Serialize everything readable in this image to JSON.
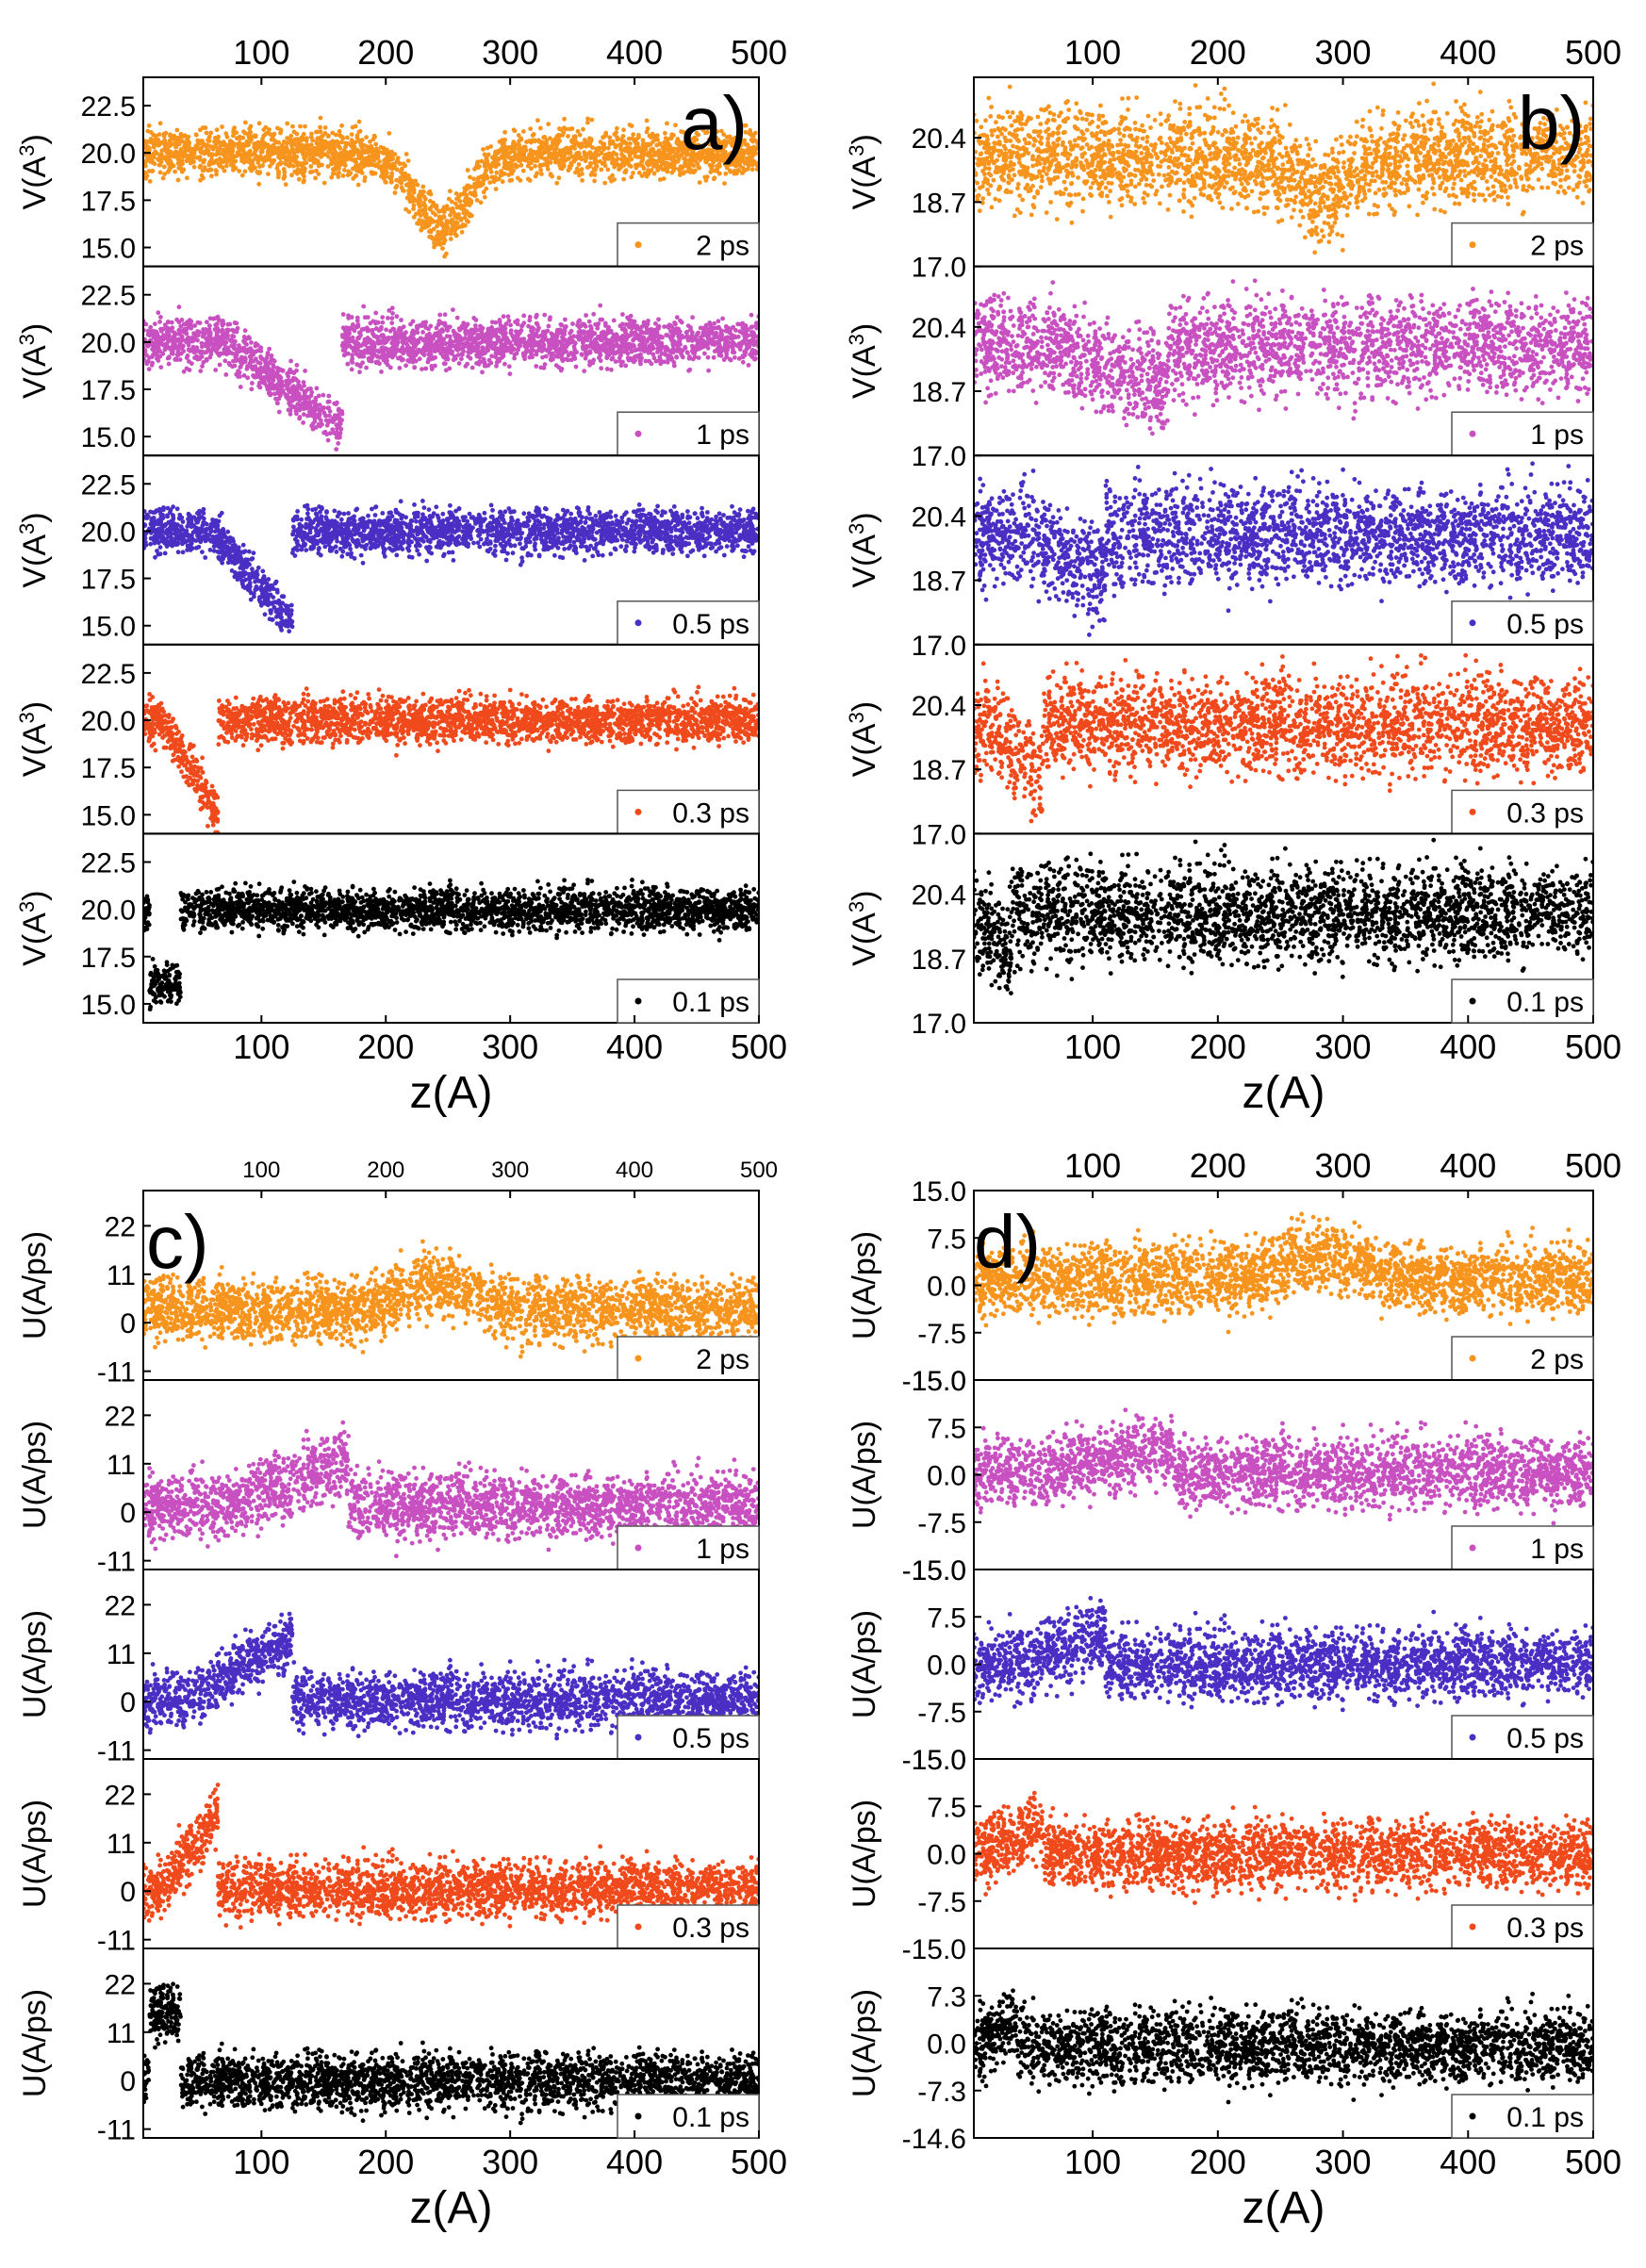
{
  "figure": {
    "description_none": ""
  },
  "chart_data": [
    {
      "type": "scatter",
      "panel_label": "a)",
      "xlabel": "z(A)",
      "ylabel": "V(A3)",
      "ylabel_main": "V(A",
      "ylabel_sup": "3",
      "ylabel_end": ")",
      "xlim": [
        5,
        500
      ],
      "ylim": [
        14.0,
        24.0
      ],
      "xticks": [
        100,
        200,
        300,
        400,
        500
      ],
      "yticks": [
        15.0,
        17.5,
        20.0,
        22.5
      ],
      "ytick_labels": [
        "15.0",
        "17.5",
        "20.0",
        "22.5"
      ],
      "series": [
        {
          "name": "2 ps",
          "color": "#f7941d",
          "legend": "2 ps",
          "baseline": 20.0,
          "spread": 1.4,
          "dip": {
            "center": 245,
            "depth": 4.0,
            "width": 30,
            "profile": "gaussian"
          }
        },
        {
          "name": "1 ps",
          "color": "#c850c0",
          "legend": "1 ps",
          "baseline": 20.0,
          "spread": 1.4,
          "dip": {
            "start": 70,
            "end": 165,
            "depth": 4.5,
            "profile": "ramp"
          }
        },
        {
          "name": "0.5 ps",
          "color": "#4b2fc4",
          "legend": "0.5 ps",
          "baseline": 20.0,
          "spread": 1.3,
          "dip": {
            "start": 60,
            "end": 125,
            "depth": 4.8,
            "profile": "ramp"
          }
        },
        {
          "name": "0.3 ps",
          "color": "#f04a1c",
          "legend": "0.3 ps",
          "baseline": 20.0,
          "spread": 1.3,
          "dip": {
            "start": 20,
            "end": 65,
            "depth": 5.0,
            "profile": "ramp"
          }
        },
        {
          "name": "0.1 ps",
          "color": "#000000",
          "legend": "0.1 ps",
          "baseline": 20.0,
          "spread": 1.2,
          "dip": {
            "start": 10,
            "end": 35,
            "depth": 4.0,
            "profile": "flat"
          }
        }
      ]
    },
    {
      "type": "scatter",
      "panel_label": "b)",
      "xlabel": "z(A)",
      "ylabel": "V(A3)",
      "ylabel_main": "V(A",
      "ylabel_sup": "3",
      "ylabel_end": ")",
      "xlim": [
        5,
        500
      ],
      "ylim": [
        17.0,
        22.0
      ],
      "xticks": [
        100,
        200,
        300,
        400,
        500
      ],
      "yticks": [
        17.0,
        18.7,
        20.4
      ],
      "ytick_labels": [
        "17.0",
        "18.7",
        "20.4"
      ],
      "series": [
        {
          "name": "2 ps",
          "color": "#f7941d",
          "legend": "2 ps",
          "baseline": 19.9,
          "spread": 1.4,
          "dip": {
            "center": 285,
            "depth": 1.0,
            "width": 30,
            "profile": "gaussian"
          }
        },
        {
          "name": "1 ps",
          "color": "#c850c0",
          "legend": "1 ps",
          "baseline": 19.9,
          "spread": 1.4,
          "dip": {
            "start": 70,
            "end": 160,
            "depth": 1.1,
            "profile": "ramp"
          }
        },
        {
          "name": "0.5 ps",
          "color": "#4b2fc4",
          "legend": "0.5 ps",
          "baseline": 19.9,
          "spread": 1.4,
          "dip": {
            "start": 50,
            "end": 110,
            "depth": 1.2,
            "profile": "ramp"
          }
        },
        {
          "name": "0.3 ps",
          "color": "#f04a1c",
          "legend": "0.3 ps",
          "baseline": 19.9,
          "spread": 1.4,
          "dip": {
            "start": 15,
            "end": 60,
            "depth": 1.4,
            "profile": "ramp"
          }
        },
        {
          "name": "0.1 ps",
          "color": "#000000",
          "legend": "0.1 ps",
          "baseline": 19.9,
          "spread": 1.4,
          "dip": {
            "start": 5,
            "end": 35,
            "depth": 1.2,
            "profile": "ramp"
          }
        }
      ]
    },
    {
      "type": "scatter",
      "panel_label": "c)",
      "xlabel": "z(A)",
      "ylabel": "U(A/ps)",
      "xlim": [
        5,
        500
      ],
      "ylim": [
        -13,
        30
      ],
      "xticks": [
        100,
        200,
        300,
        400,
        500
      ],
      "yticks": [
        -11,
        0,
        11,
        22
      ],
      "ytick_labels": [
        "-11",
        "0",
        "11",
        "22"
      ],
      "series": [
        {
          "name": "2 ps",
          "color": "#f7941d",
          "legend": "2 ps",
          "baseline": 3.0,
          "spread": 8.0,
          "dip": {
            "center": 240,
            "depth": -6.0,
            "width": 40,
            "profile": "gaussian"
          }
        },
        {
          "name": "1 ps",
          "color": "#c850c0",
          "legend": "1 ps",
          "baseline": 1.5,
          "spread": 8.0,
          "dip": {
            "start": 70,
            "end": 170,
            "depth": -10.0,
            "profile": "ramp"
          }
        },
        {
          "name": "0.5 ps",
          "color": "#4b2fc4",
          "legend": "0.5 ps",
          "baseline": 0.5,
          "spread": 7.0,
          "dip": {
            "start": 40,
            "end": 125,
            "depth": -14.0,
            "profile": "ramp"
          }
        },
        {
          "name": "0.3 ps",
          "color": "#f04a1c",
          "legend": "0.3 ps",
          "baseline": 0.5,
          "spread": 7.0,
          "dip": {
            "start": 20,
            "end": 65,
            "depth": -17.0,
            "profile": "ramp"
          }
        },
        {
          "name": "0.1 ps",
          "color": "#000000",
          "legend": "0.1 ps",
          "baseline": 0.0,
          "spread": 7.0,
          "dip": {
            "start": 10,
            "end": 35,
            "depth": -15.0,
            "profile": "flat"
          }
        }
      ]
    },
    {
      "type": "scatter",
      "panel_label": "d)",
      "xlabel": "z(A)",
      "ylabel": "U(A/ps)",
      "xlim": [
        5,
        500
      ],
      "ylim": [
        -15,
        15
      ],
      "xticks": [
        100,
        200,
        300,
        400,
        500
      ],
      "yticks": [
        -15.0,
        -7.5,
        0.0,
        7.5,
        15.0
      ],
      "ytick_labels": [
        "-15.0",
        "-7.5",
        "0.0",
        "7.5",
        "15.0"
      ],
      "bottom_ylim": [
        -14.6,
        14.6
      ],
      "bottom_yticks": [
        -14.6,
        -7.3,
        0.0,
        7.3
      ],
      "bottom_ytick_labels": [
        "-14.6",
        "-7.3",
        "0.0",
        "7.3"
      ],
      "series": [
        {
          "name": "2 ps",
          "color": "#f7941d",
          "legend": "2 ps",
          "baseline": 1.0,
          "spread": 6.0,
          "dip": {
            "center": 285,
            "depth": -3.5,
            "width": 45,
            "profile": "gaussian"
          }
        },
        {
          "name": "1 ps",
          "color": "#c850c0",
          "legend": "1 ps",
          "baseline": 0.5,
          "spread": 6.0,
          "dip": {
            "start": 60,
            "end": 165,
            "depth": -4.0,
            "profile": "ramp"
          }
        },
        {
          "name": "0.5 ps",
          "color": "#4b2fc4",
          "legend": "0.5 ps",
          "baseline": 0.0,
          "spread": 6.0,
          "dip": {
            "start": 40,
            "end": 110,
            "depth": -4.5,
            "profile": "ramp"
          }
        },
        {
          "name": "0.3 ps",
          "color": "#f04a1c",
          "legend": "0.3 ps",
          "baseline": 0.0,
          "spread": 6.0,
          "dip": {
            "start": 15,
            "end": 60,
            "depth": -5.0,
            "profile": "ramp"
          }
        },
        {
          "name": "0.1 ps",
          "color": "#000000",
          "legend": "0.1 ps",
          "baseline": -0.5,
          "spread": 6.0,
          "dip": {
            "start": 5,
            "end": 40,
            "depth": -4.5,
            "profile": "ramp"
          }
        }
      ]
    }
  ]
}
